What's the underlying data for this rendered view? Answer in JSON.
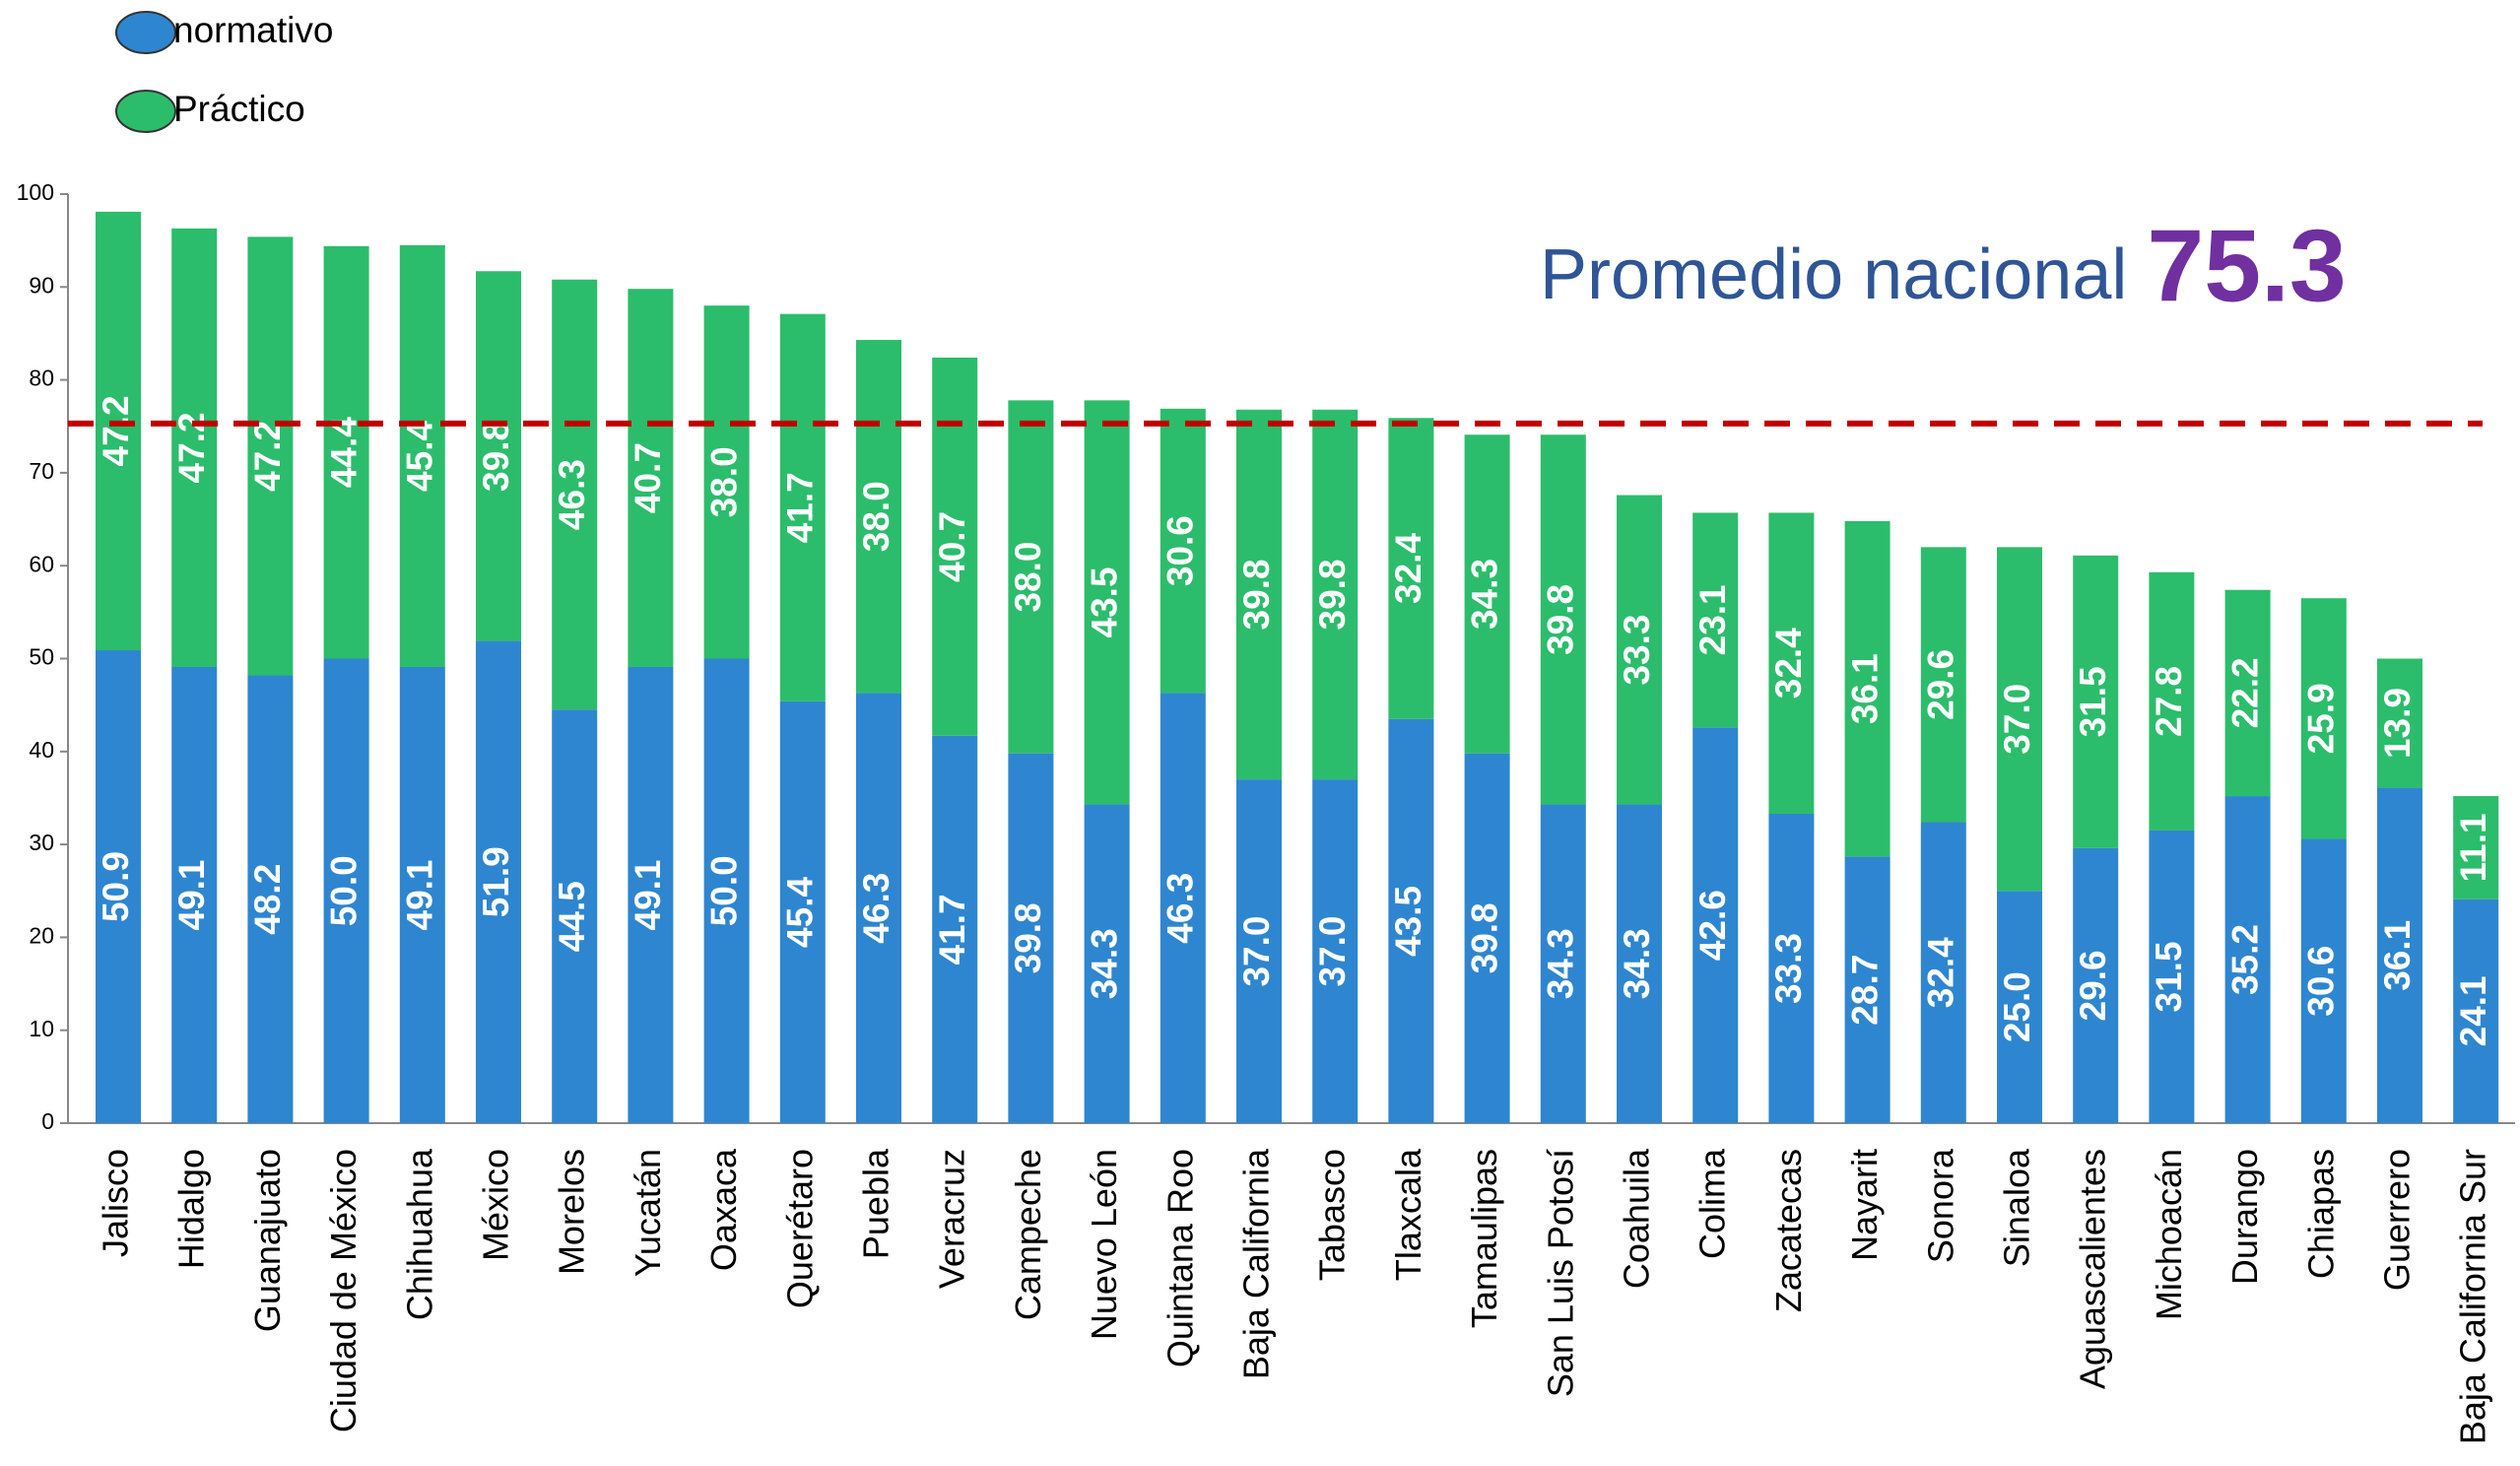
{
  "chart_data": {
    "type": "stacked_bar",
    "categories": [
      "Jalisco",
      "Hidalgo",
      "Guanajuato",
      "Ciudad de México",
      "Chihuahua",
      "México",
      "Morelos",
      "Yucatán",
      "Oaxaca",
      "Querétaro",
      "Puebla",
      "Veracruz",
      "Campeche",
      "Nuevo León",
      "Quintana Roo",
      "Baja California",
      "Tabasco",
      "Tlaxcala",
      "Tamaulipas",
      "San Luis Potosí",
      "Coahuila",
      "Colima",
      "Zacatecas",
      "Nayarit",
      "Sonora",
      "Sinaloa",
      "Aguascalientes",
      "Michoacán",
      "Durango",
      "Chiapas",
      "Guerrero",
      "Baja California Sur"
    ],
    "series": [
      {
        "name": "normativo",
        "color": "#2e86d0",
        "values": [
          50.9,
          49.1,
          48.2,
          50.0,
          49.1,
          51.9,
          44.5,
          49.1,
          50.0,
          45.4,
          46.3,
          41.7,
          39.8,
          34.3,
          46.3,
          37.0,
          37.0,
          43.5,
          39.8,
          34.3,
          34.3,
          42.6,
          33.3,
          28.7,
          32.4,
          25.0,
          29.6,
          31.5,
          35.2,
          30.6,
          36.1,
          24.1
        ],
        "value_labels": [
          "50.9",
          "49.1",
          "48.2",
          "50.0",
          "49.1",
          "51.9",
          "44.5",
          "49.1",
          "50.0",
          "45.4",
          "46.3",
          "41.7",
          "39.8",
          "34.3",
          "46.3",
          "37.0",
          "37.0",
          "43.5",
          "39.8",
          "34.3",
          "34.3",
          "42.6",
          "33.3",
          "28.7",
          "32.4",
          "25.0",
          "29.6",
          "31.5",
          "35.2",
          "30.6",
          "36.1",
          "24.1"
        ]
      },
      {
        "name": "Práctico",
        "color": "#2bbd6b",
        "values": [
          47.2,
          47.2,
          47.2,
          44.4,
          45.4,
          39.8,
          46.3,
          40.7,
          38.0,
          41.7,
          38.0,
          40.7,
          38.0,
          43.5,
          30.6,
          39.8,
          39.8,
          32.4,
          34.3,
          39.8,
          33.3,
          23.1,
          32.4,
          36.1,
          29.6,
          37.0,
          31.5,
          27.8,
          22.2,
          25.9,
          13.9,
          11.1
        ],
        "value_labels": [
          "47.2",
          "47.2",
          "47.2",
          "44.4",
          "45.4",
          "39.8",
          "46.3",
          "40.7",
          "38.0",
          "41.7",
          "38.0",
          "40.7",
          "38.0",
          "43.5",
          "30.6",
          "39.8",
          "39.8",
          "32.4",
          "34.3",
          "39.8",
          "33.3",
          "23.1",
          "32.4",
          "36.1",
          "29.6",
          "37.0",
          "31.5",
          "27.8",
          "22.2",
          "25.9",
          "13.9",
          "11.1"
        ]
      }
    ],
    "ylim": [
      0,
      100
    ],
    "yticks": [
      0,
      10,
      20,
      30,
      40,
      50,
      60,
      70,
      80,
      90,
      100
    ],
    "reference_line": {
      "label": "Promedio nacional",
      "value": 75.3,
      "color": "#c00000"
    },
    "legend": "top-left"
  }
}
